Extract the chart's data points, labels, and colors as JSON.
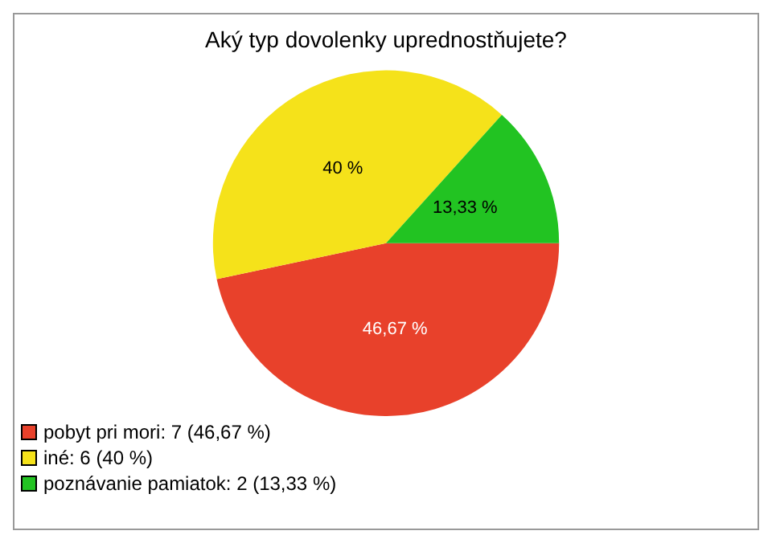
{
  "chart_data": {
    "type": "pie",
    "title": "Aký typ dovolenky uprednostňujete?",
    "categories": [
      "pobyt pri mori: 7 (46,67 %)",
      "iné: 6 (40 %)",
      "poznávanie pamiatok: 2 (13,33 %)"
    ],
    "values": [
      46.67,
      40,
      13.33
    ],
    "value_labels": [
      "46,67 %",
      "40 %",
      "13,33 %"
    ],
    "colors": [
      "#e8412b",
      "#f5e21a",
      "#22c322"
    ],
    "legend": "bottom left"
  }
}
